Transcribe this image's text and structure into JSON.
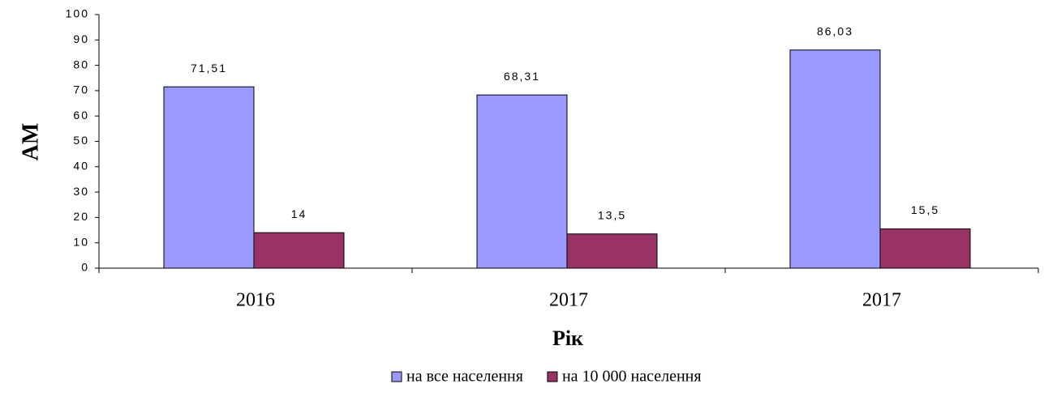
{
  "chart_data": {
    "type": "bar",
    "categories": [
      "2016",
      "2017",
      "2017"
    ],
    "series": [
      {
        "name": "на все населення",
        "color": "#9999ff",
        "values": [
          71.51,
          68.31,
          86.03
        ],
        "value_labels": [
          "71,51",
          "68,31",
          "86,03"
        ]
      },
      {
        "name": "на 10 000 населення",
        "color": "#993366",
        "values": [
          14,
          13.5,
          15.5
        ],
        "value_labels": [
          "14",
          "13,5",
          "15,5"
        ]
      }
    ],
    "ylabel": "АМ",
    "xlabel": "Рік",
    "ylim": [
      0,
      100
    ],
    "yticks": [
      0,
      10,
      20,
      30,
      40,
      50,
      60,
      70,
      80,
      90,
      100
    ],
    "legend": "bottom"
  }
}
